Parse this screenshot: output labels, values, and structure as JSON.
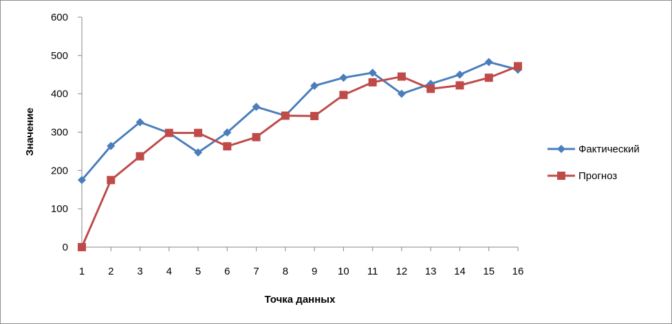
{
  "chart_data": {
    "type": "line",
    "title": "",
    "xlabel": "Точка данных",
    "ylabel": "Значение",
    "categories": [
      1,
      2,
      3,
      4,
      5,
      6,
      7,
      8,
      9,
      10,
      11,
      12,
      13,
      14,
      15,
      16
    ],
    "ylim": [
      0,
      600
    ],
    "yticks": [
      0,
      100,
      200,
      300,
      400,
      500,
      600
    ],
    "grid": false,
    "legend_position": "right",
    "series": [
      {
        "name": "Фактический",
        "color": "#4a7ebb",
        "marker": "diamond",
        "values": [
          175,
          264,
          326,
          298,
          247,
          299,
          366,
          343,
          421,
          442,
          455,
          400,
          426,
          450,
          483,
          463
        ]
      },
      {
        "name": "Прогноз",
        "color": "#be4b48",
        "marker": "square",
        "values": [
          0,
          175,
          237,
          298,
          298,
          263,
          287,
          343,
          342,
          397,
          430,
          445,
          413,
          422,
          442,
          472
        ]
      }
    ]
  }
}
